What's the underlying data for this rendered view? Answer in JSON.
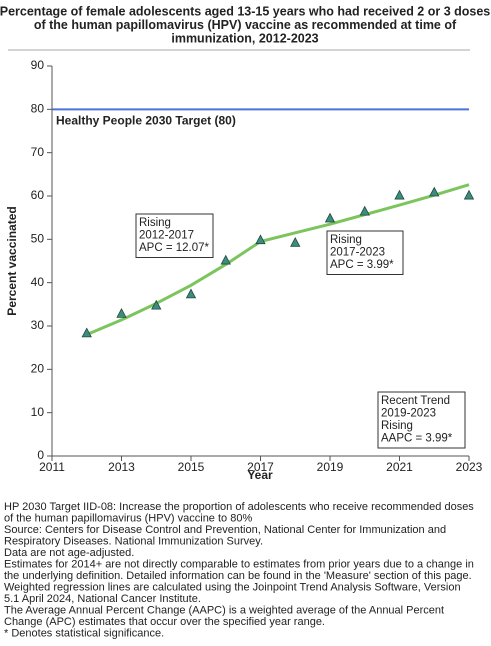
{
  "chart_data": {
    "type": "line",
    "title": [
      "Percentage of female adolescents aged 13-15 years who had received 2 or 3 doses",
      "of the human papillomavirus (HPV) vaccine as recommended at time of",
      "immunization, 2012-2023"
    ],
    "x_label": "Year",
    "y_label": "Percent vaccinated",
    "x": [
      2012,
      2013,
      2014,
      2015,
      2016,
      2017,
      2018,
      2019,
      2020,
      2021,
      2022,
      2023
    ],
    "series": [
      {
        "color": "#3d8c7c",
        "marker": "triangle",
        "values": [
          28.3,
          32.8,
          34.7,
          37.3,
          45.1,
          49.8,
          49.2,
          54.8,
          56.4,
          60.1,
          60.8,
          60.1
        ]
      },
      {
        "color": "#7cc45c",
        "marker": "none",
        "values": [
          28.0,
          31.4,
          35.2,
          39.4,
          44.2,
          49.5,
          51.5,
          53.5,
          55.7,
          57.9,
          60.2,
          62.6
        ]
      }
    ],
    "target": {
      "value": 80,
      "label": "Healthy People 2030 Target (80)",
      "color": "#4a72d8"
    },
    "annotations": [
      [
        "Rising",
        "2012-2017",
        "APC = 12.07*"
      ],
      [
        "Rising",
        "2017-2023",
        "APC =  3.99*"
      ],
      [
        "Recent Trend",
        "2019-2023",
        "Rising",
        "AAPC =  3.99*"
      ]
    ],
    "xlim": [
      2011,
      2023
    ],
    "xticks": [
      2011,
      2013,
      2015,
      2017,
      2019,
      2021,
      2023
    ],
    "ylim": [
      0,
      90
    ],
    "yticks": [
      0,
      10,
      20,
      30,
      40,
      50,
      60,
      70,
      80,
      90
    ],
    "grid": false,
    "footnotes": [
      "HP 2030 Target IID-08:  Increase the proportion of adolescents who receive recommended doses",
      "of the human papillomavirus (HPV) vaccine to 80%",
      "Source: Centers for Disease Control and Prevention, National Center for Immunization and",
      "Respiratory Diseases. National Immunization Survey.",
      "Data are not age-adjusted.",
      "Estimates for 2014+ are not directly comparable to estimates from prior years due to a change in",
      "the underlying definition. Detailed information can be found in the 'Measure' section of this page.",
      "Weighted regression lines are calculated using the Joinpoint Trend Analysis Software, Version",
      "5.1 April 2024, National Cancer Institute.",
      "The Average Annual Percent Change (AAPC) is a weighted average of the Annual Percent",
      "Change (APC) estimates that occur over the specified year range.",
      "* Denotes statistical significance."
    ]
  }
}
